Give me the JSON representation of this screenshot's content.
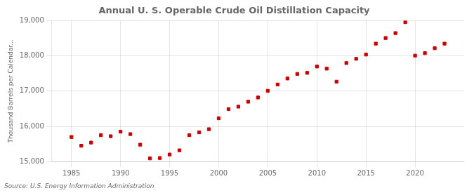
{
  "chart_data": {
    "type": "scatter",
    "title": "Annual U. S. Operable Crude Oil Distillation Capacity",
    "y_label": "Thousand Barrels per Calendar...",
    "annotation": "Source: U.S. Energy Information Administration",
    "color": "#cc0000",
    "marker": "square",
    "grid": true,
    "x": [
      1985,
      1986,
      1987,
      1988,
      1989,
      1990,
      1991,
      1992,
      1993,
      1994,
      1995,
      1996,
      1997,
      1998,
      1999,
      2000,
      2001,
      2002,
      2003,
      2004,
      2005,
      2006,
      2007,
      2008,
      2009,
      2010,
      2011,
      2012,
      2013,
      2014,
      2015,
      2016,
      2017,
      2018,
      2019,
      2020,
      2021,
      2022,
      2023
    ],
    "values": [
      15698,
      15450,
      15540,
      15750,
      15720,
      15850,
      15780,
      15480,
      15090,
      15100,
      15200,
      15320,
      15750,
      15830,
      15920,
      16230,
      16490,
      16560,
      16700,
      16820,
      17010,
      17190,
      17360,
      17490,
      17520,
      17700,
      17640,
      17270,
      17800,
      17920,
      18040,
      18350,
      18510,
      18650,
      18960,
      18010,
      18080,
      18220,
      18350
    ],
    "xlim": [
      1983,
      2025
    ],
    "xticks": [
      1985,
      1990,
      1995,
      2000,
      2005,
      2010,
      2015,
      2020
    ],
    "ylim": [
      15000,
      19000
    ],
    "yticks": [
      {
        "value": 15000,
        "label": "15,000"
      },
      {
        "value": 16000,
        "label": "16,000"
      },
      {
        "value": 17000,
        "label": "17,000"
      },
      {
        "value": 18000,
        "label": "18,000"
      },
      {
        "value": 19000,
        "label": "19,000"
      }
    ]
  }
}
